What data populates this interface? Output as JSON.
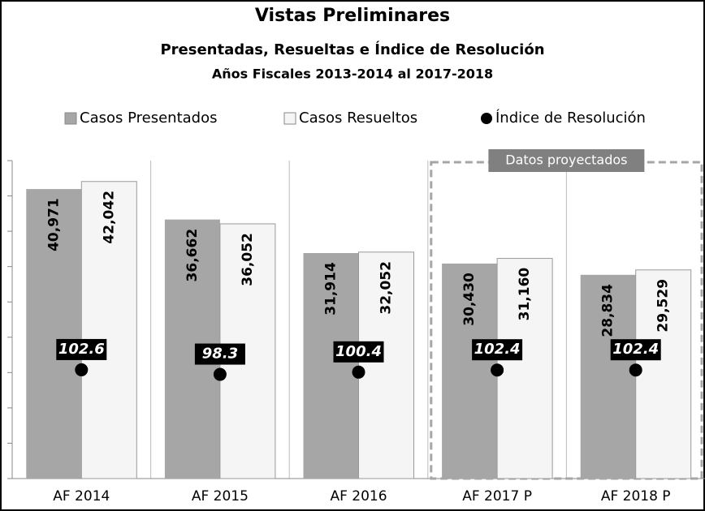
{
  "chart_data": {
    "type": "bar",
    "title": "Vistas Preliminares",
    "subtitle": [
      "Presentadas, Resueltas e Índice de Resolución",
      "Años Fiscales 2013-2014 al 2017-2018"
    ],
    "categories": [
      "AF 2014",
      "AF 2015",
      "AF 2016",
      "AF 2017 P",
      "AF 2018 P"
    ],
    "series": [
      {
        "name": "Casos Presentados",
        "color": "#a6a6a6",
        "values": [
          40971,
          36662,
          31914,
          30430,
          28834
        ],
        "value_labels": [
          "40,971",
          "36,662",
          "31,914",
          "30,430",
          "28,834"
        ]
      },
      {
        "name": "Casos Resueltos",
        "color": "#f5f5f5",
        "values": [
          42042,
          36052,
          32052,
          31160,
          29529
        ],
        "value_labels": [
          "42,042",
          "36,052",
          "32,052",
          "31,160",
          "29,529"
        ]
      },
      {
        "name": "Índice de Resolución",
        "type": "scatter",
        "axis": "y2",
        "color": "#000000",
        "values": [
          102.6,
          98.3,
          100.4,
          102.4,
          102.4
        ]
      }
    ],
    "annotation": "Datos proyectados",
    "ylim": [
      0,
      45000
    ],
    "yticks": [
      0,
      5000,
      10000,
      15000,
      20000,
      25000,
      30000,
      35000,
      40000,
      45000
    ],
    "y2lim": [
      0,
      300
    ],
    "legend": "top"
  }
}
